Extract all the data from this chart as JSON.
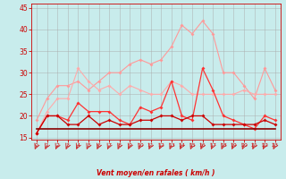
{
  "x": [
    0,
    1,
    2,
    3,
    4,
    5,
    6,
    7,
    8,
    9,
    10,
    11,
    12,
    13,
    14,
    15,
    16,
    17,
    18,
    19,
    20,
    21,
    22,
    23
  ],
  "line1": [
    19,
    24,
    27,
    27,
    28,
    26,
    28,
    30,
    30,
    32,
    33,
    32,
    33,
    36,
    41,
    39,
    42,
    39,
    30,
    30,
    27,
    24,
    31,
    26
  ],
  "line2": [
    16,
    21,
    24,
    24,
    31,
    28,
    26,
    27,
    25,
    27,
    26,
    25,
    25,
    28,
    27,
    25,
    25,
    25,
    25,
    25,
    26,
    25,
    25,
    25
  ],
  "line3": [
    16,
    20,
    20,
    19,
    23,
    21,
    21,
    21,
    19,
    18,
    22,
    21,
    22,
    28,
    20,
    19,
    31,
    26,
    20,
    19,
    18,
    17,
    20,
    19
  ],
  "line4": [
    16,
    20,
    20,
    18,
    18,
    20,
    18,
    19,
    18,
    18,
    19,
    19,
    20,
    20,
    19,
    20,
    20,
    18,
    18,
    18,
    18,
    18,
    19,
    18
  ],
  "line5": [
    17,
    17,
    17,
    17,
    17,
    17,
    17,
    17,
    17,
    17,
    17,
    17,
    17,
    17,
    17,
    17,
    17,
    17,
    17,
    17,
    17,
    17,
    17,
    17
  ],
  "bg_color": "#c8ecec",
  "grid_color": "#aaaaaa",
  "line1_color": "#ff9999",
  "line2_color": "#ffaaaa",
  "line3_color": "#ff3333",
  "line4_color": "#cc0000",
  "line5_color": "#880000",
  "arrow_color": "#cc2222",
  "tick_color": "#cc0000",
  "xlabel": "Vent moyen/en rafales ( km/h )",
  "ylim": [
    14.5,
    46
  ],
  "xlim": [
    -0.5,
    23.5
  ],
  "yticks": [
    15,
    20,
    25,
    30,
    35,
    40,
    45
  ],
  "xticks": [
    0,
    1,
    2,
    3,
    4,
    5,
    6,
    7,
    8,
    9,
    10,
    11,
    12,
    13,
    14,
    15,
    16,
    17,
    18,
    19,
    20,
    21,
    22,
    23
  ]
}
